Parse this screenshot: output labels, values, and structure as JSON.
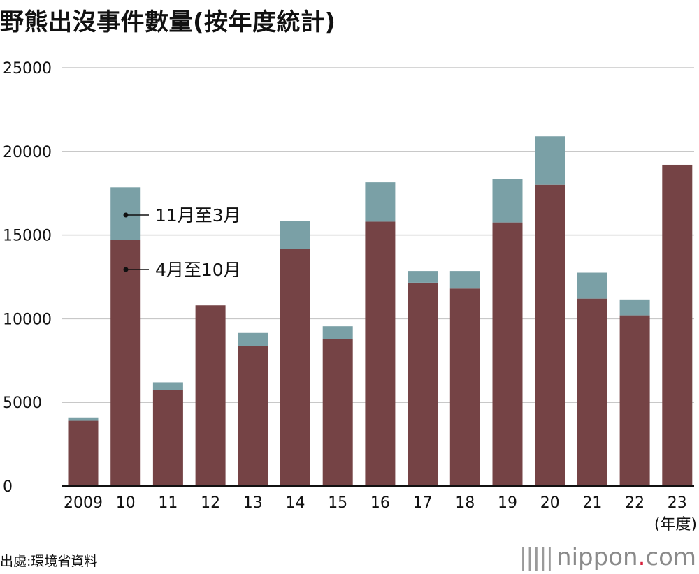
{
  "title": "野熊出沒事件數量(按年度統計)",
  "source": "出處:環境省資料",
  "brand": {
    "name": "nippon",
    "dot": ".",
    "tld": "com"
  },
  "colors": {
    "apr_oct": "#754345",
    "nov_mar": "#7aa0a6",
    "grid": "#c8c8c8",
    "axis": "#111111"
  },
  "chart_data": {
    "type": "bar",
    "stacked": true,
    "categories": [
      "2009",
      "10",
      "11",
      "12",
      "13",
      "14",
      "15",
      "16",
      "17",
      "18",
      "19",
      "20",
      "21",
      "22",
      "23"
    ],
    "x_unit": "(年度)",
    "ylim": [
      0,
      25000
    ],
    "yticks": [
      0,
      5000,
      10000,
      15000,
      20000,
      25000
    ],
    "grid": true,
    "series": [
      {
        "name": "4月至10月",
        "color": "#754345",
        "values": [
          3900,
          14700,
          5750,
          10800,
          8350,
          14150,
          8800,
          15800,
          12150,
          11800,
          15750,
          18000,
          11200,
          10200,
          19200
        ]
      },
      {
        "name": "11月至3月",
        "color": "#7aa0a6",
        "values": [
          200,
          3150,
          450,
          0,
          800,
          1700,
          750,
          2350,
          700,
          1050,
          2600,
          2900,
          1550,
          950,
          0
        ]
      }
    ]
  }
}
